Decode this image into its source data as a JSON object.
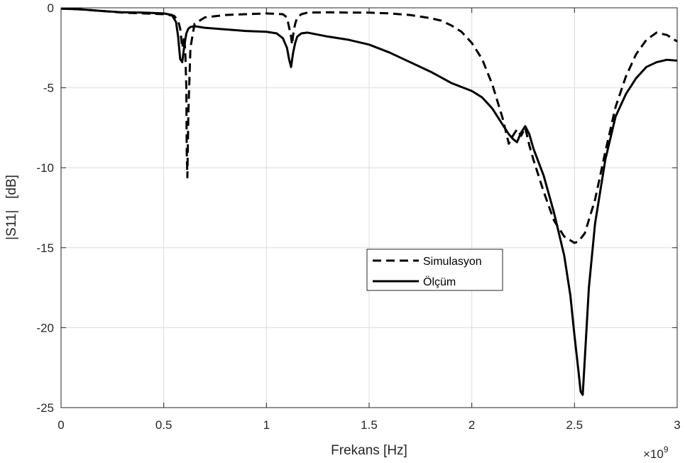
{
  "chart_data": {
    "type": "line",
    "xlabel": "Frekans [Hz]",
    "ylabel": "|S11|   [dB]",
    "x_exponent_label": "×10",
    "x_exponent_power": "9",
    "xlim": [
      0,
      3
    ],
    "ylim": [
      -25,
      0
    ],
    "x_ticks": [
      0,
      0.5,
      1,
      1.5,
      2,
      2.5,
      3
    ],
    "x_tick_labels": [
      "0",
      "0.5",
      "1",
      "1.5",
      "2",
      "2.5",
      "3"
    ],
    "y_ticks": [
      0,
      -5,
      -10,
      -15,
      -20,
      -25
    ],
    "y_tick_labels": [
      "0",
      "-5",
      "-10",
      "-15",
      "-20",
      "-25"
    ],
    "grid": true,
    "legend_position": "center-right",
    "series": [
      {
        "name": "Simulasyon",
        "style": "dashed",
        "color": "#000000",
        "x": [
          0,
          0.1,
          0.2,
          0.3,
          0.4,
          0.5,
          0.55,
          0.57,
          0.58,
          0.59,
          0.6,
          0.605,
          0.61,
          0.612,
          0.615,
          0.62,
          0.63,
          0.65,
          0.7,
          0.8,
          0.9,
          1.0,
          1.08,
          1.1,
          1.11,
          1.12,
          1.125,
          1.13,
          1.135,
          1.14,
          1.15,
          1.17,
          1.2,
          1.3,
          1.4,
          1.5,
          1.6,
          1.7,
          1.8,
          1.85,
          1.9,
          1.95,
          2.0,
          2.05,
          2.1,
          2.15,
          2.18,
          2.2,
          2.22,
          2.24,
          2.26,
          2.28,
          2.3,
          2.35,
          2.4,
          2.45,
          2.5,
          2.52,
          2.55,
          2.6,
          2.65,
          2.7,
          2.75,
          2.8,
          2.85,
          2.9,
          2.95,
          3.0
        ],
        "y": [
          -0.05,
          -0.1,
          -0.2,
          -0.3,
          -0.35,
          -0.4,
          -0.5,
          -0.8,
          -1.3,
          -2.5,
          -1.8,
          -2.8,
          -5.0,
          -9.0,
          -10.6,
          -6.5,
          -2.5,
          -1.0,
          -0.6,
          -0.45,
          -0.4,
          -0.35,
          -0.4,
          -0.6,
          -1.2,
          -1.8,
          -2.3,
          -1.7,
          -1.3,
          -1.0,
          -0.6,
          -0.4,
          -0.3,
          -0.28,
          -0.3,
          -0.3,
          -0.35,
          -0.45,
          -0.65,
          -0.8,
          -1.1,
          -1.5,
          -2.2,
          -3.2,
          -4.8,
          -6.9,
          -8.5,
          -8.0,
          -7.6,
          -8.0,
          -7.5,
          -8.6,
          -9.5,
          -11.5,
          -13.3,
          -14.3,
          -14.7,
          -14.6,
          -14.1,
          -12.0,
          -9.0,
          -6.2,
          -4.3,
          -2.9,
          -2.0,
          -1.55,
          -1.7,
          -2.1
        ]
      },
      {
        "name": "Ölçüm",
        "style": "solid",
        "color": "#000000",
        "x": [
          0,
          0.1,
          0.2,
          0.3,
          0.4,
          0.5,
          0.54,
          0.56,
          0.57,
          0.58,
          0.59,
          0.6,
          0.61,
          0.62,
          0.63,
          0.65,
          0.7,
          0.8,
          0.9,
          1.0,
          1.05,
          1.08,
          1.1,
          1.11,
          1.12,
          1.13,
          1.14,
          1.15,
          1.17,
          1.2,
          1.3,
          1.4,
          1.5,
          1.6,
          1.7,
          1.8,
          1.9,
          2.0,
          2.05,
          2.1,
          2.15,
          2.18,
          2.2,
          2.22,
          2.24,
          2.26,
          2.28,
          2.3,
          2.35,
          2.4,
          2.45,
          2.48,
          2.5,
          2.52,
          2.53,
          2.54,
          2.55,
          2.57,
          2.6,
          2.65,
          2.7,
          2.75,
          2.8,
          2.85,
          2.9,
          2.95,
          3.0
        ],
        "y": [
          -0.05,
          -0.1,
          -0.2,
          -0.28,
          -0.3,
          -0.35,
          -0.45,
          -0.9,
          -1.8,
          -3.2,
          -3.4,
          -2.4,
          -1.6,
          -1.3,
          -1.2,
          -1.15,
          -1.25,
          -1.35,
          -1.45,
          -1.5,
          -1.6,
          -1.9,
          -2.5,
          -3.2,
          -3.7,
          -2.8,
          -2.2,
          -1.8,
          -1.6,
          -1.55,
          -1.8,
          -2.0,
          -2.3,
          -2.8,
          -3.4,
          -4.0,
          -4.7,
          -5.2,
          -5.6,
          -6.3,
          -7.3,
          -7.9,
          -8.2,
          -8.4,
          -7.8,
          -7.4,
          -7.9,
          -8.8,
          -10.5,
          -12.8,
          -15.5,
          -18.0,
          -20.5,
          -22.8,
          -24.0,
          -24.2,
          -22.0,
          -17.5,
          -13.5,
          -9.5,
          -6.8,
          -5.4,
          -4.4,
          -3.7,
          -3.4,
          -3.25,
          -3.3
        ]
      }
    ]
  }
}
